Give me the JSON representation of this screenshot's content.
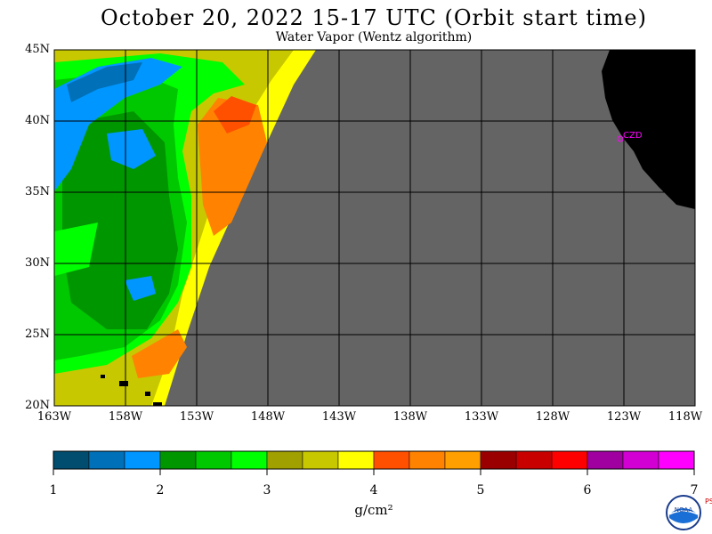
{
  "header": {
    "title": "October 20, 2022  15-17 UTC  (Orbit start time)",
    "subtitle": "Water Vapor (Wentz algorithm)"
  },
  "map": {
    "latitude_labels": [
      "45N",
      "40N",
      "35N",
      "30N",
      "25N",
      "20N"
    ],
    "longitude_labels": [
      "163W",
      "158W",
      "153W",
      "148W",
      "143W",
      "138W",
      "133W",
      "128W",
      "123W",
      "118W"
    ],
    "lat_range": [
      20,
      45
    ],
    "lon_range": [
      -163,
      -118
    ],
    "station_label": "CZD",
    "colors": {
      "no_data": "#646464",
      "land": "#000000",
      "grid": "#000000",
      "station": "#ff00ff"
    }
  },
  "colorbar": {
    "colors": [
      "#004d70",
      "#0070b8",
      "#0096ff",
      "#009600",
      "#00c800",
      "#00ff00",
      "#a0a000",
      "#c8c800",
      "#ffff00",
      "#ff5000",
      "#ff8200",
      "#ffa000",
      "#9b0000",
      "#c80000",
      "#ff0000",
      "#a000a0",
      "#d200d2",
      "#ff00ff"
    ],
    "ticks": [
      "1",
      "2",
      "3",
      "4",
      "5",
      "6",
      "7"
    ],
    "units": "g/cm²"
  },
  "logo": {
    "name": "NOAA",
    "side_text": "PSL"
  }
}
